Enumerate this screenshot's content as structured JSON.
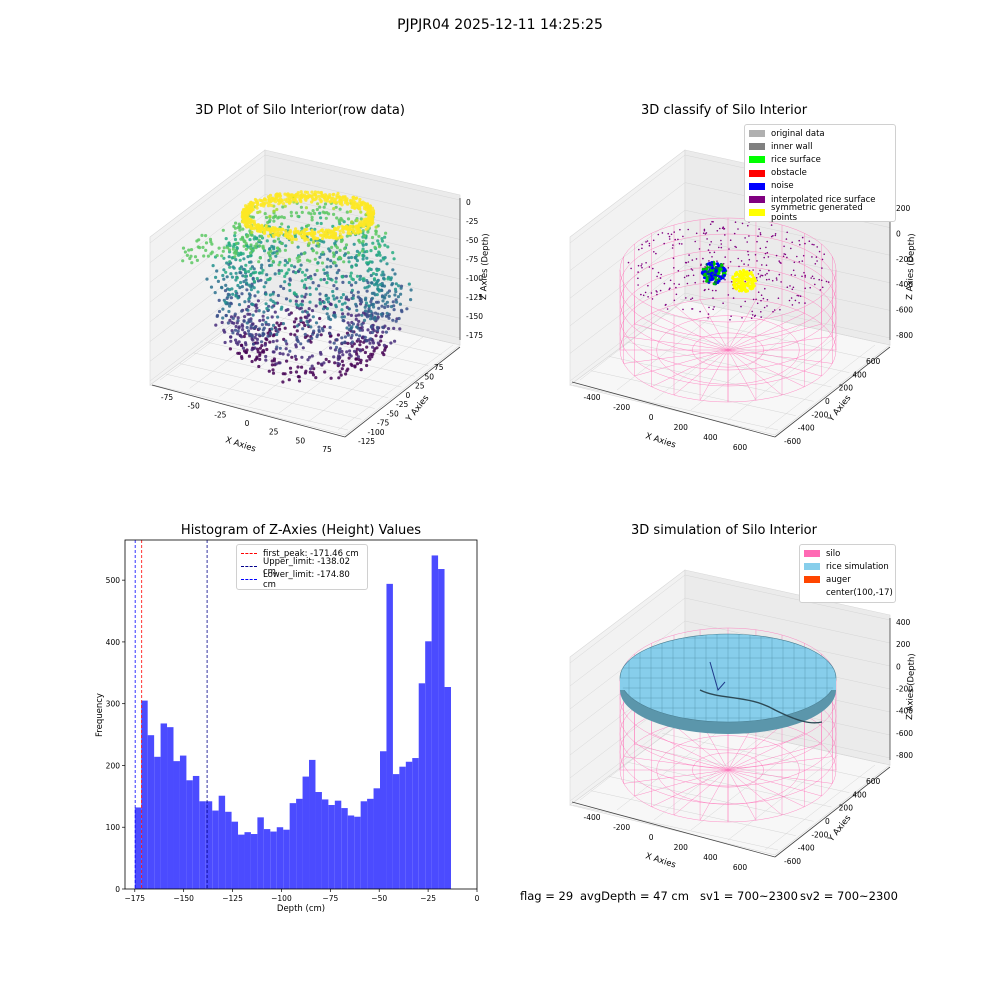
{
  "suptitle": "PJPJR04 2025-12-11 14:25:25",
  "status": {
    "flag": "flag = 29",
    "avg_depth": "avgDepth = 47 cm",
    "sv1": "sv1 = 700~2300",
    "sv2": "sv2 = 700~2300"
  },
  "chart_data": [
    {
      "type": "scatter",
      "title": "3D Plot of Silo Interior(row data)",
      "xlabel": "X Axies",
      "ylabel": "Y Axies",
      "zlabel": "Z Axies (Depth)",
      "x_ticks": [
        "-75",
        "-50",
        "-25",
        "0",
        "25",
        "50",
        "75"
      ],
      "y_ticks": [
        "-125",
        "-100",
        "-75",
        "-50",
        "-25",
        "0",
        "25",
        "50",
        "75"
      ],
      "z_ticks": [
        "0",
        "-25",
        "-50",
        "-75",
        "-100",
        "-125",
        "-150",
        "-175"
      ],
      "xlim": [
        -85,
        85
      ],
      "ylim": [
        -130,
        85
      ],
      "zlim": [
        -185,
        5
      ],
      "colormap": "viridis"
    },
    {
      "type": "scatter",
      "title": "3D classify of Silo Interior",
      "xlabel": "X Axies",
      "ylabel": "Y Axies",
      "zlabel": "Z Axies (Depth)",
      "x_ticks": [
        "-400",
        "-200",
        "0",
        "200",
        "400",
        "600"
      ],
      "y_ticks": [
        "-600",
        "-400",
        "-200",
        "0",
        "200",
        "400",
        "600"
      ],
      "z_ticks": [
        "200",
        "0",
        "-200",
        "-400",
        "-600",
        "-800"
      ],
      "legend": [
        {
          "label": "original data",
          "color": "#b0b0b0"
        },
        {
          "label": "inner wall",
          "color": "#808080"
        },
        {
          "label": "rice surface",
          "color": "#00ff00"
        },
        {
          "label": "obstacle",
          "color": "#ff0000"
        },
        {
          "label": "noise",
          "color": "#0000ff"
        },
        {
          "label": "interpolated rice surface",
          "color": "#800080"
        },
        {
          "label": "symmetric generated points",
          "color": "#ffff00"
        }
      ],
      "legend_loc": "upper right"
    },
    {
      "type": "bar",
      "title": "Histogram of Z-Axies (Height) Values",
      "xlabel": "Depth (cm)",
      "ylabel": "Frequency",
      "xlim": [
        -180,
        0
      ],
      "ylim": [
        0,
        565
      ],
      "x_ticks": [
        -175,
        -150,
        -125,
        -100,
        -75,
        -50,
        -25,
        0
      ],
      "y_ticks": [
        0,
        100,
        200,
        300,
        400,
        500
      ],
      "bin_start": -175.0,
      "bin_width": 3.3,
      "bin_color": "#4b4bff",
      "values": [
        132,
        305,
        249,
        214,
        268,
        262,
        207,
        216,
        176,
        183,
        142,
        142,
        127,
        151,
        125,
        109,
        88,
        92,
        89,
        116,
        97,
        93,
        100,
        96,
        139,
        146,
        182,
        209,
        157,
        145,
        136,
        143,
        131,
        119,
        117,
        142,
        146,
        163,
        223,
        494,
        186,
        198,
        206,
        212,
        333,
        401,
        540,
        518,
        327
      ],
      "vlines": [
        {
          "label": "first_peak: -171.46 cm",
          "x": -171.46,
          "color": "#ff0000",
          "style": "dashed"
        },
        {
          "label": "Upper_limit: -138.02 cm",
          "x": -138.02,
          "color": "#00008b",
          "style": "dashed"
        },
        {
          "label": "Lower_limit: -174.80 cm",
          "x": -174.8,
          "color": "#0000ff",
          "style": "dashed"
        }
      ],
      "legend_loc": "upper center"
    },
    {
      "type": "surface",
      "title": "3D simulation of Silo Interior",
      "xlabel": "X Axies",
      "ylabel": "Y Axies",
      "zlabel": "Z Axies (Depth)",
      "x_ticks": [
        "-400",
        "-200",
        "0",
        "200",
        "400",
        "600"
      ],
      "y_ticks": [
        "-600",
        "-400",
        "-200",
        "0",
        "200",
        "400",
        "600"
      ],
      "z_ticks": [
        "400",
        "200",
        "0",
        "-200",
        "-400",
        "-600",
        "-800"
      ],
      "legend": [
        {
          "label": "silo",
          "color": "#ff69b4"
        },
        {
          "label": "rice simulation",
          "color": "#87ceeb"
        },
        {
          "label": "auger",
          "color": "#ff4500"
        },
        {
          "label": "center(100,-17)",
          "color": ""
        }
      ],
      "legend_loc": "upper right"
    }
  ]
}
